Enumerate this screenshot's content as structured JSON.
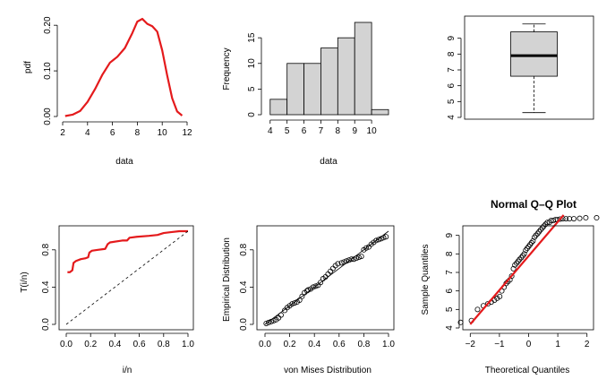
{
  "chart_data": [
    {
      "id": "density",
      "type": "line",
      "title": "",
      "xlabel": "data",
      "ylabel": "pdf",
      "xlim": [
        2,
        12
      ],
      "ylim": [
        0,
        0.22
      ],
      "xticks": [
        2,
        4,
        6,
        8,
        10,
        12
      ],
      "yticks": [
        0.0,
        0.1,
        0.2
      ],
      "ytick_labels": [
        "0.00",
        "0.10",
        "0.20"
      ],
      "line_color": "#e41a1c",
      "series": [
        {
          "name": "pdf",
          "x": [
            2.2,
            2.8,
            3.4,
            4.0,
            4.6,
            5.2,
            5.8,
            6.4,
            7.0,
            7.6,
            8.0,
            8.4,
            8.8,
            9.2,
            9.6,
            10.0,
            10.4,
            10.8,
            11.2,
            11.6
          ],
          "y": [
            0.001,
            0.004,
            0.012,
            0.032,
            0.06,
            0.092,
            0.118,
            0.131,
            0.15,
            0.183,
            0.208,
            0.214,
            0.203,
            0.198,
            0.186,
            0.145,
            0.09,
            0.04,
            0.011,
            0.002
          ]
        }
      ]
    },
    {
      "id": "histogram",
      "type": "bar",
      "title": "",
      "xlabel": "data",
      "ylabel": "Frequency",
      "xlim": [
        3.8,
        11
      ],
      "ylim": [
        0,
        18
      ],
      "xticks": [
        4,
        5,
        6,
        7,
        8,
        9,
        10
      ],
      "yticks": [
        0,
        5,
        10,
        15
      ],
      "bar_fill": "#d3d3d3",
      "bins": [
        [
          4,
          5
        ],
        [
          5,
          6
        ],
        [
          6,
          7
        ],
        [
          7,
          8
        ],
        [
          8,
          9
        ],
        [
          9,
          10
        ],
        [
          10,
          11
        ]
      ],
      "values": [
        3,
        10,
        10,
        13,
        15,
        18,
        1
      ]
    },
    {
      "id": "boxplot",
      "type": "box",
      "title": "",
      "xlabel": "",
      "ylabel": "",
      "ylim": [
        4,
        10
      ],
      "yticks": [
        4,
        5,
        6,
        7,
        8,
        9
      ],
      "box_fill": "#d3d3d3",
      "stats": {
        "min": 4.3,
        "q1": 6.6,
        "median": 7.9,
        "q3": 9.4,
        "max": 9.9
      }
    },
    {
      "id": "ttt",
      "type": "line",
      "title": "",
      "xlabel": "i/n",
      "ylabel": "T(i/n)",
      "xlim": [
        0,
        1
      ],
      "ylim": [
        0,
        1
      ],
      "xticks": [
        0.0,
        0.2,
        0.4,
        0.6,
        0.8,
        1.0
      ],
      "xtick_labels": [
        "0.0",
        "0.2",
        "0.4",
        "0.6",
        "0.8",
        "1.0"
      ],
      "yticks": [
        0.0,
        0.4,
        0.8
      ],
      "ytick_labels": [
        "0.0",
        "0.4",
        "0.8"
      ],
      "line_color": "#e41a1c",
      "series": [
        {
          "name": "T(i/n)",
          "x": [
            0.01,
            0.03,
            0.05,
            0.06,
            0.08,
            0.12,
            0.16,
            0.18,
            0.19,
            0.21,
            0.26,
            0.32,
            0.34,
            0.36,
            0.46,
            0.5,
            0.52,
            0.58,
            0.68,
            0.75,
            0.8,
            0.86,
            0.93,
            1.0
          ],
          "y": [
            0.56,
            0.56,
            0.58,
            0.66,
            0.68,
            0.7,
            0.71,
            0.72,
            0.77,
            0.79,
            0.8,
            0.81,
            0.86,
            0.88,
            0.9,
            0.9,
            0.93,
            0.94,
            0.95,
            0.96,
            0.98,
            0.99,
            1.0,
            1.0
          ]
        },
        {
          "name": "reference",
          "style": "dashed",
          "x": [
            0,
            1
          ],
          "y": [
            0,
            1
          ]
        }
      ]
    },
    {
      "id": "pp",
      "type": "scatter",
      "title": "",
      "xlabel": "von Mises Distribution",
      "ylabel": "Empirical Distribution",
      "xlim": [
        0,
        1
      ],
      "ylim": [
        0,
        1
      ],
      "xticks": [
        0.0,
        0.2,
        0.4,
        0.6,
        0.8,
        1.0
      ],
      "xtick_labels": [
        "0.0",
        "0.2",
        "0.4",
        "0.6",
        "0.8",
        "1.0"
      ],
      "yticks": [
        0.0,
        0.4,
        0.8
      ],
      "ytick_labels": [
        "0.0",
        "0.4",
        "0.8"
      ],
      "series": [
        {
          "name": "points",
          "x": [
            0.01,
            0.03,
            0.05,
            0.07,
            0.09,
            0.11,
            0.13,
            0.16,
            0.18,
            0.2,
            0.22,
            0.24,
            0.26,
            0.28,
            0.3,
            0.32,
            0.34,
            0.35,
            0.37,
            0.39,
            0.41,
            0.43,
            0.45,
            0.47,
            0.49,
            0.51,
            0.53,
            0.55,
            0.57,
            0.59,
            0.62,
            0.64,
            0.66,
            0.68,
            0.7,
            0.72,
            0.74,
            0.76,
            0.78,
            0.8,
            0.82,
            0.84,
            0.86,
            0.88,
            0.9,
            0.92,
            0.94,
            0.96,
            0.98
          ],
          "y": [
            0.01,
            0.02,
            0.03,
            0.04,
            0.05,
            0.07,
            0.1,
            0.15,
            0.18,
            0.2,
            0.22,
            0.23,
            0.24,
            0.26,
            0.3,
            0.34,
            0.36,
            0.37,
            0.38,
            0.4,
            0.41,
            0.42,
            0.45,
            0.49,
            0.51,
            0.54,
            0.57,
            0.6,
            0.63,
            0.65,
            0.66,
            0.67,
            0.68,
            0.69,
            0.7,
            0.7,
            0.71,
            0.72,
            0.73,
            0.8,
            0.82,
            0.83,
            0.86,
            0.88,
            0.9,
            0.91,
            0.92,
            0.93,
            0.94
          ]
        },
        {
          "name": "reference",
          "x": [
            0,
            1
          ],
          "y": [
            0,
            1
          ]
        }
      ]
    },
    {
      "id": "qq",
      "type": "scatter",
      "title": "Normal Q–Q Plot",
      "xlabel": "Theoretical Quantiles",
      "ylabel": "Sample Quantiles",
      "xlim": [
        -2.5,
        2.5
      ],
      "ylim": [
        4,
        10
      ],
      "xticks": [
        -2,
        -1,
        0,
        1,
        2
      ],
      "xtick_labels": [
        "−2",
        "−1",
        "0",
        "1",
        "2"
      ],
      "yticks": [
        4,
        5,
        6,
        7,
        8,
        9
      ],
      "line_color": "#e41a1c",
      "series": [
        {
          "name": "points",
          "x": [
            -2.33,
            -1.96,
            -1.75,
            -1.55,
            -1.4,
            -1.28,
            -1.17,
            -1.08,
            -0.99,
            -0.92,
            -0.84,
            -0.77,
            -0.71,
            -0.64,
            -0.58,
            -0.52,
            -0.47,
            -0.41,
            -0.36,
            -0.31,
            -0.25,
            -0.2,
            -0.15,
            -0.1,
            -0.05,
            0.0,
            0.05,
            0.1,
            0.15,
            0.2,
            0.25,
            0.31,
            0.36,
            0.41,
            0.47,
            0.52,
            0.58,
            0.64,
            0.71,
            0.77,
            0.84,
            0.92,
            0.99,
            1.08,
            1.17,
            1.28,
            1.4,
            1.55,
            1.75,
            1.96,
            2.33
          ],
          "y": [
            4.3,
            4.4,
            5.0,
            5.2,
            5.3,
            5.4,
            5.5,
            5.6,
            5.7,
            6.0,
            6.2,
            6.4,
            6.5,
            6.6,
            6.8,
            7.2,
            7.4,
            7.5,
            7.6,
            7.7,
            7.8,
            7.9,
            8.0,
            8.2,
            8.3,
            8.4,
            8.5,
            8.6,
            8.7,
            8.9,
            9.0,
            9.1,
            9.2,
            9.3,
            9.4,
            9.5,
            9.6,
            9.7,
            9.7,
            9.8,
            9.8,
            9.85,
            9.85,
            9.88,
            9.9,
            9.9,
            9.9,
            9.9,
            9.92,
            9.95,
            9.95
          ]
        },
        {
          "name": "fit",
          "x": [
            -2.0,
            1.2
          ],
          "y": [
            4.2,
            10.1
          ]
        }
      ]
    }
  ]
}
